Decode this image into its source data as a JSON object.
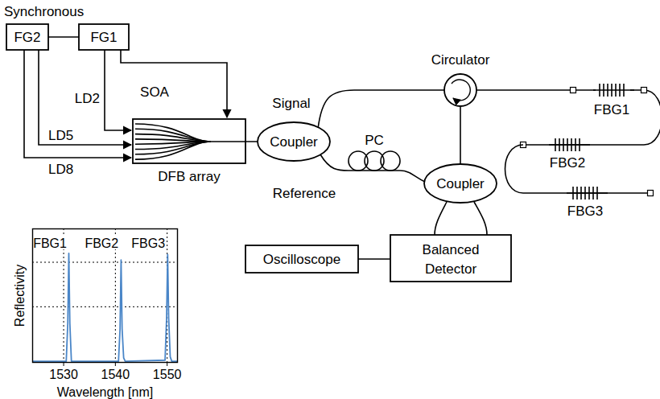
{
  "diagram": {
    "synchronous": "Synchronous",
    "fg1": "FG1",
    "fg2": "FG2",
    "ld2": "LD2",
    "ld5": "LD5",
    "ld8": "LD8",
    "soa": "SOA",
    "dfb_array": "DFB array",
    "signal": "Signal",
    "reference": "Reference",
    "coupler_source": "Coupler",
    "coupler_detector": "Coupler",
    "pc": "PC",
    "circulator": "Circulator",
    "fbg1": "FBG1",
    "fbg2": "FBG2",
    "fbg3": "FBG3",
    "oscilloscope": "Oscilloscope",
    "balanced_detector": [
      "Balanced",
      "Detector"
    ]
  },
  "chart_data": {
    "type": "line",
    "x_label": "Wavelength [nm]",
    "y_label": "Reflectivity",
    "xlim": [
      1524,
      1552
    ],
    "xticks": [
      1530,
      1540,
      1550
    ],
    "ylim": [
      0,
      1.2
    ],
    "yticks": [
      0.5,
      0.9
    ],
    "grid": true,
    "tick_labels": "x",
    "color": "#4a86c8",
    "x": [
      1524,
      1530.5,
      1530.8,
      1531.0,
      1531.2,
      1531.5,
      1540.6,
      1540.9,
      1541.1,
      1541.3,
      1541.6,
      1541.9,
      1549.6,
      1549.9,
      1550.1,
      1550.3,
      1550.6,
      1550.9,
      1552
    ],
    "values": [
      0.01,
      0.01,
      0.35,
      0.98,
      0.35,
      0.01,
      0.01,
      0.3,
      0.92,
      0.3,
      0.04,
      0.01,
      0.02,
      0.4,
      0.97,
      0.4,
      0.05,
      0.01,
      0.01
    ],
    "annotations": [
      {
        "text": "FBG1",
        "x": 1530.6,
        "y": 1.07
      },
      {
        "text": "FBG2",
        "x": 1540.6,
        "y": 1.07
      },
      {
        "text": "FBG3",
        "x": 1549.6,
        "y": 1.07
      }
    ]
  }
}
